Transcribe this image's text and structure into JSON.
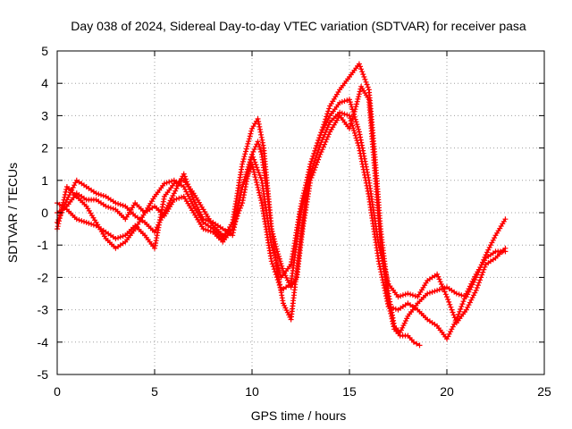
{
  "chart_data": {
    "type": "line",
    "title": "Day 038 of 2024, Sidereal Day-to-day VTEC variation (SDTVAR) for receiver pasa",
    "xlabel": "GPS time / hours",
    "ylabel": "SDTVAR / TECUs",
    "xlim": [
      0,
      25
    ],
    "ylim": [
      -5,
      5
    ],
    "xticks": [
      0,
      5,
      10,
      15,
      20,
      25
    ],
    "yticks": [
      -5,
      -4,
      -3,
      -2,
      -1,
      0,
      1,
      2,
      3,
      4,
      5
    ],
    "grid": true,
    "marker": "+",
    "color": "#ff0000",
    "series": [
      {
        "name": "track-1",
        "x": [
          0.0,
          0.5,
          1.0,
          1.5,
          2.0,
          2.5,
          3.0,
          3.5,
          4.0,
          4.5,
          5.0,
          5.5,
          6.0,
          6.5,
          7.0,
          7.5,
          8.0,
          8.5,
          9.0,
          9.5,
          10.0,
          10.3,
          10.5,
          10.8,
          11.0,
          11.3,
          11.6,
          12.0,
          12.3,
          12.6,
          13.0,
          13.5,
          14.0,
          14.5,
          15.0,
          15.3,
          15.6,
          16.0,
          16.3,
          16.6,
          17.0,
          17.3,
          17.6,
          18.0,
          18.3,
          18.6
        ],
        "y": [
          0.3,
          0.1,
          -0.2,
          -0.3,
          -0.4,
          -0.6,
          -0.8,
          -0.7,
          -0.4,
          -0.7,
          -1.1,
          0.5,
          0.9,
          1.0,
          0.6,
          0.1,
          -0.4,
          -0.7,
          -0.5,
          0.8,
          1.8,
          2.2,
          1.8,
          0.5,
          -0.5,
          -1.2,
          -1.8,
          -2.3,
          -2.0,
          -0.5,
          1.0,
          1.8,
          2.5,
          3.0,
          2.6,
          3.2,
          3.9,
          3.5,
          1.3,
          -1.0,
          -2.8,
          -3.6,
          -3.8,
          -3.8,
          -4.0,
          -4.1
        ]
      },
      {
        "name": "track-2",
        "x": [
          0.0,
          0.5,
          1.0,
          1.5,
          2.0,
          2.5,
          3.0,
          3.5,
          4.0,
          4.5,
          5.0,
          5.5,
          6.0,
          6.5,
          7.0,
          7.5,
          8.0,
          8.5,
          9.0,
          9.5,
          10.0,
          10.3,
          10.6,
          11.0,
          11.3,
          11.6,
          12.0,
          12.3,
          12.6,
          13.0,
          13.5,
          14.0,
          14.5,
          15.0,
          15.5,
          16.0,
          16.3,
          16.6,
          17.0,
          17.3,
          17.6,
          18.0,
          18.5,
          19.0,
          19.5,
          20.0,
          20.5,
          21.0,
          21.5,
          22.0,
          22.5,
          23.0
        ],
        "y": [
          -0.5,
          0.8,
          0.5,
          0.2,
          -0.3,
          -0.8,
          -1.1,
          -0.9,
          -0.5,
          0.0,
          0.5,
          0.9,
          1.0,
          0.8,
          0.2,
          -0.3,
          -0.5,
          -0.8,
          -0.3,
          1.5,
          2.6,
          2.9,
          2.0,
          -0.5,
          -1.8,
          -2.8,
          -3.3,
          -1.8,
          -0.3,
          1.5,
          2.4,
          3.3,
          3.8,
          4.2,
          4.6,
          3.8,
          1.8,
          -0.5,
          -2.5,
          -3.5,
          -3.7,
          -3.2,
          -2.8,
          -2.5,
          -2.4,
          -2.3,
          -2.5,
          -2.6,
          -2.0,
          -1.3,
          -0.7,
          -0.2
        ]
      },
      {
        "name": "track-3",
        "x": [
          0.0,
          0.5,
          1.0,
          1.5,
          2.0,
          2.5,
          3.0,
          3.5,
          4.0,
          4.5,
          5.0,
          5.5,
          6.0,
          6.5,
          7.0,
          7.5,
          8.0,
          8.5,
          9.0,
          9.5,
          10.0,
          10.5,
          11.0,
          11.5,
          12.0,
          12.5,
          13.0,
          13.5,
          14.0,
          14.5,
          15.0,
          15.5,
          16.0,
          16.5,
          17.0,
          17.5,
          18.0,
          18.5,
          19.0,
          19.5,
          20.0,
          20.5,
          21.0,
          21.5,
          22.0,
          22.5,
          23.0
        ],
        "y": [
          0.0,
          0.2,
          0.6,
          0.4,
          0.4,
          0.2,
          0.1,
          -0.2,
          0.3,
          0.0,
          0.2,
          -0.1,
          0.4,
          0.5,
          0.0,
          -0.5,
          -0.6,
          -0.9,
          -0.5,
          0.3,
          1.8,
          1.0,
          -1.0,
          -2.0,
          -1.6,
          0.2,
          1.5,
          2.4,
          3.0,
          3.4,
          3.5,
          2.5,
          1.0,
          -1.0,
          -2.2,
          -2.6,
          -2.5,
          -2.6,
          -2.1,
          -1.9,
          -2.6,
          -3.4,
          -3.0,
          -2.4,
          -1.6,
          -1.4,
          -1.1
        ]
      },
      {
        "name": "track-4",
        "x": [
          0.0,
          0.5,
          1.0,
          1.5,
          2.0,
          2.5,
          3.0,
          3.5,
          4.0,
          4.5,
          5.0,
          5.5,
          6.0,
          6.5,
          7.0,
          7.5,
          8.0,
          8.5,
          9.0,
          9.5,
          10.0,
          10.5,
          11.0,
          11.5,
          12.0,
          12.5,
          13.0,
          13.5,
          14.0,
          14.5,
          15.0,
          15.5,
          16.0,
          16.5,
          17.0,
          17.5,
          18.0,
          18.5,
          19.0,
          19.5,
          20.0,
          20.5,
          21.0,
          21.5,
          22.0,
          22.5,
          23.0
        ],
        "y": [
          -0.3,
          0.4,
          1.0,
          0.8,
          0.6,
          0.5,
          0.3,
          0.2,
          -0.1,
          -0.3,
          -0.6,
          0.0,
          0.6,
          1.2,
          0.4,
          -0.2,
          -0.3,
          -0.5,
          -0.7,
          0.8,
          1.5,
          0.3,
          -1.5,
          -2.4,
          -2.2,
          0.0,
          1.2,
          2.1,
          2.8,
          3.1,
          3.0,
          2.0,
          0.5,
          -1.5,
          -2.9,
          -3.0,
          -2.8,
          -3.0,
          -3.3,
          -3.5,
          -3.9,
          -3.3,
          -2.5,
          -1.9,
          -1.4,
          -1.2,
          -1.2
        ]
      }
    ]
  }
}
